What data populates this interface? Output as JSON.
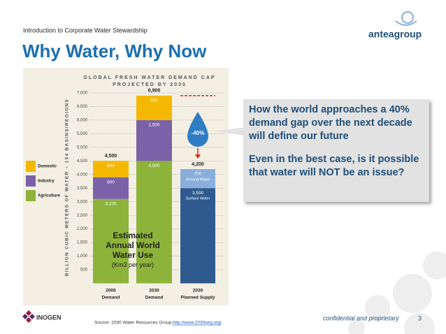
{
  "header": {
    "breadcrumb": "Introduction to Corporate Water Stewardship",
    "title": "Why Water, Why Now",
    "logo": "anteagroup"
  },
  "chart_data": {
    "type": "bar",
    "stacked": true,
    "title": "GLOBAL FRESH WATER DEMAND CAP",
    "subtitle": "PROJECTED BY 2030",
    "y_label": "BILLION CUBIC METERS OF WATER – 154 BASINS/REGIONS",
    "categories": [
      "2005",
      "2030",
      "2030"
    ],
    "category_sublabels": [
      "Demand",
      "Demand",
      "Planned Supply"
    ],
    "series": [
      {
        "name": "Agriculture",
        "color": "#8db33a",
        "legend": true,
        "values": [
          3100,
          4500,
          null
        ],
        "value_labels": [
          "3,100",
          "4,500",
          null
        ]
      },
      {
        "name": "Industry",
        "color": "#7b62a8",
        "legend": true,
        "values": [
          800,
          1500,
          null
        ],
        "value_labels": [
          "800",
          "1,500",
          null
        ]
      },
      {
        "name": "Domestic",
        "color": "#f5b800",
        "legend": true,
        "values": [
          600,
          900,
          null
        ],
        "value_labels": [
          "600",
          "900",
          null
        ]
      },
      {
        "name": "Surface Water",
        "color": "#2e5a8e",
        "legend": false,
        "values": [
          null,
          null,
          3500
        ],
        "value_labels": [
          null,
          null,
          "3,500"
        ]
      },
      {
        "name": "Ground Water",
        "color": "#8aaedb",
        "legend": false,
        "values": [
          null,
          null,
          700
        ]
      }
    ],
    "totals": [
      4500,
      6900,
      4200
    ],
    "total_labels": [
      "4,500",
      "6,900",
      "4,200"
    ],
    "ylim": [
      0,
      7000
    ],
    "yticks": [
      500,
      {
        "value": 1000,
        "label": "1,000"
      },
      {
        "value": 1500,
        "label": "1,500"
      },
      {
        "value": 2000,
        "label": "2,000"
      },
      {
        "value": 2500,
        "label": "2,500"
      },
      {
        "value": 3000,
        "label": "3,000"
      },
      {
        "value": 3500,
        "label": "3,500"
      },
      {
        "value": 4000,
        "label": "4,000"
      },
      {
        "value": 4500,
        "label": "4,500"
      },
      {
        "value": 5000,
        "label": "5,000"
      },
      {
        "value": 5500,
        "label": "5,500"
      },
      {
        "value": 6000,
        "label": "6,000"
      },
      {
        "value": 6500,
        "label": "6,500"
      },
      {
        "value": 7000,
        "label": "7,000"
      }
    ],
    "grid": true,
    "gap_annotation": "-40%",
    "overlay": {
      "title": "Estimated Annual World Water Use",
      "unit": "(Km3 per year)"
    }
  },
  "callout": {
    "statement": "How the world approaches a 40% demand gap over the next decade will define our future",
    "question": "Even in the best case, is it possible that water will NOT be an issue?"
  },
  "footer": {
    "company": "INOGEN",
    "source": "Source: 2030 Water Resources Group,",
    "link": "http://www.2030wrg.org/",
    "confidential": "confidential and proprietary",
    "page": "3"
  }
}
